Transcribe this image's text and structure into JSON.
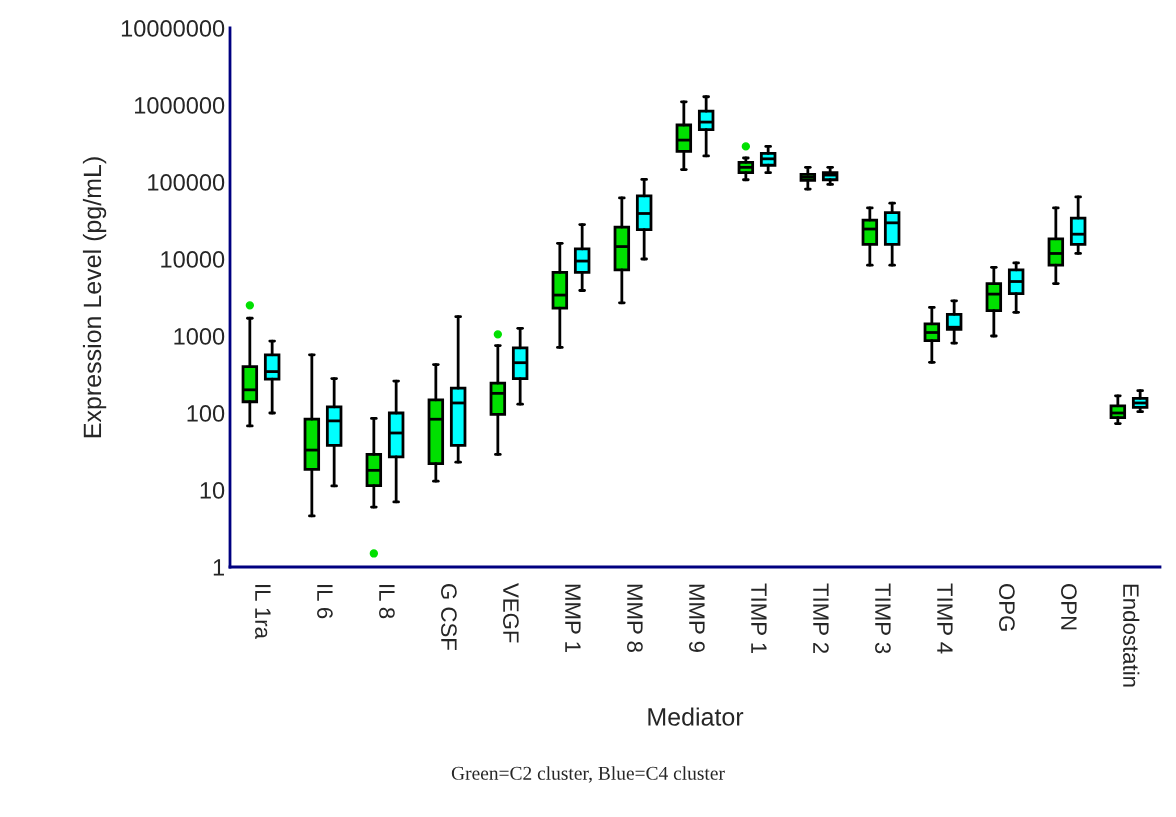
{
  "chart_data": {
    "type": "box",
    "xlabel": "Mediator",
    "ylabel": "Expression Level (pg/mL)",
    "log": true,
    "ylim": [
      1,
      10000000
    ],
    "yticks": [
      1,
      10,
      100,
      1000,
      10000,
      100000,
      1000000,
      10000000
    ],
    "grid": false,
    "legend": false,
    "categories": [
      "IL 1ra",
      "IL 6",
      "IL 8",
      "G CSF",
      "VEGF",
      "MMP 1",
      "MMP 8",
      "MMP 9",
      "TIMP 1",
      "TIMP 2",
      "TIMP 3",
      "TIMP 4",
      "OPG",
      "OPN",
      "Endostatin"
    ],
    "series": [
      {
        "color": "#00e000",
        "boxes": [
          {
            "low": 68,
            "q1": 140,
            "median": 200,
            "q3": 400,
            "high": 1700,
            "outliers": [
              2500
            ]
          },
          {
            "low": 4.6,
            "q1": 18.5,
            "median": 33,
            "q3": 83,
            "high": 570
          },
          {
            "low": 6,
            "q1": 11.4,
            "median": 18,
            "q3": 29,
            "high": 85,
            "outliers": [
              1.5
            ]
          },
          {
            "low": 13,
            "q1": 22,
            "median": 83,
            "q3": 148,
            "high": 425
          },
          {
            "low": 29,
            "q1": 96,
            "median": 180,
            "q3": 245,
            "high": 750,
            "outliers": [
              1050
            ]
          },
          {
            "low": 710,
            "q1": 2300,
            "median": 3400,
            "q3": 6700,
            "high": 16000
          },
          {
            "low": 2700,
            "q1": 7200,
            "median": 14500,
            "q3": 26000,
            "high": 62000
          },
          {
            "low": 145000,
            "q1": 250000,
            "median": 350000,
            "q3": 550000,
            "high": 1100000
          },
          {
            "low": 107000,
            "q1": 132000,
            "median": 155000,
            "q3": 180000,
            "high": 205000,
            "outliers": [
              290000
            ]
          },
          {
            "low": 81000,
            "q1": 105000,
            "median": 115000,
            "q3": 126000,
            "high": 155000
          },
          {
            "low": 8300,
            "q1": 15500,
            "median": 24500,
            "q3": 32000,
            "high": 46000
          },
          {
            "low": 455,
            "q1": 870,
            "median": 1110,
            "q3": 1440,
            "high": 2350
          },
          {
            "low": 1000,
            "q1": 2140,
            "median": 3500,
            "q3": 4800,
            "high": 7800
          },
          {
            "low": 4800,
            "q1": 8300,
            "median": 11800,
            "q3": 18300,
            "high": 46000
          },
          {
            "low": 73,
            "q1": 87,
            "median": 100,
            "q3": 124,
            "high": 167
          }
        ]
      },
      {
        "color": "#00ffff",
        "boxes": [
          {
            "low": 100,
            "q1": 275,
            "median": 345,
            "q3": 570,
            "high": 860
          },
          {
            "low": 11.3,
            "q1": 38,
            "median": 79,
            "q3": 120,
            "high": 280
          },
          {
            "low": 7,
            "q1": 27,
            "median": 55,
            "q3": 100,
            "high": 260
          },
          {
            "low": 23,
            "q1": 38,
            "median": 135,
            "q3": 210,
            "high": 1780
          },
          {
            "low": 130,
            "q1": 280,
            "median": 450,
            "q3": 700,
            "high": 1260
          },
          {
            "low": 3900,
            "q1": 6700,
            "median": 9400,
            "q3": 13500,
            "high": 28000
          },
          {
            "low": 10000,
            "q1": 24000,
            "median": 39000,
            "q3": 66000,
            "high": 108000
          },
          {
            "low": 218000,
            "q1": 480000,
            "median": 600000,
            "q3": 830000,
            "high": 1280000
          },
          {
            "low": 132000,
            "q1": 165000,
            "median": 200000,
            "q3": 235000,
            "high": 290000
          },
          {
            "low": 93000,
            "q1": 107000,
            "median": 123000,
            "q3": 132000,
            "high": 155000
          },
          {
            "low": 8300,
            "q1": 15500,
            "median": 29500,
            "q3": 40000,
            "high": 53000
          },
          {
            "low": 810,
            "q1": 1220,
            "median": 1300,
            "q3": 1910,
            "high": 2860
          },
          {
            "low": 2030,
            "q1": 3560,
            "median": 5100,
            "q3": 7200,
            "high": 8900
          },
          {
            "low": 11800,
            "q1": 15500,
            "median": 21000,
            "q3": 34000,
            "high": 64000
          },
          {
            "low": 104,
            "q1": 118,
            "median": 135,
            "q3": 155,
            "high": 195
          }
        ]
      }
    ],
    "annotations": [
      "Green=C2 cluster, Blue=C4 cluster"
    ]
  }
}
